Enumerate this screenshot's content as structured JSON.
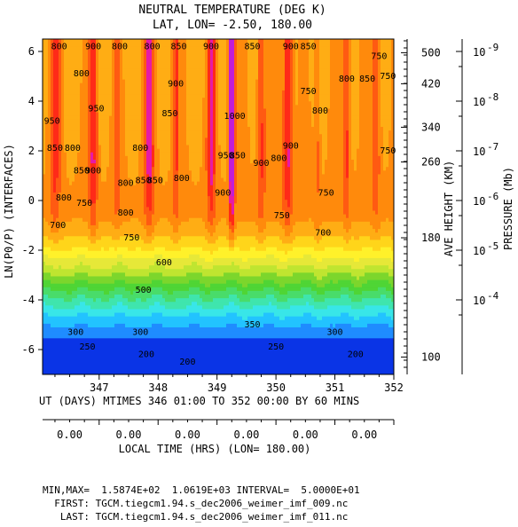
{
  "chart_data": {
    "type": "contour",
    "title": "NEUTRAL TEMPERATURE (DEG K)",
    "subtitle": "LAT, LON= -2.50,   180.00",
    "ylabel": "LN(P0/P) (INTERFACES)",
    "xlabel": "UT (DAYS) MTIMES 346 01:00 TO 352 00:00 BY    60 MINS",
    "xlim": [
      346.04,
      352.0
    ],
    "ylim": [
      -7.0,
      6.5
    ],
    "x_ticks": [
      347,
      348,
      349,
      350,
      351,
      352
    ],
    "y_ticks": [
      -6,
      -4,
      -2,
      0,
      2,
      4,
      6
    ],
    "contour_levels": [
      200,
      250,
      300,
      350,
      400,
      450,
      500,
      550,
      600,
      650,
      700,
      750,
      800,
      850,
      900,
      950,
      1000
    ],
    "contour_labels": [
      {
        "x": 346.32,
        "y": 6.2,
        "v": "800"
      },
      {
        "x": 346.9,
        "y": 6.2,
        "v": "900"
      },
      {
        "x": 347.35,
        "y": 6.2,
        "v": "800"
      },
      {
        "x": 346.7,
        "y": 5.1,
        "v": "800"
      },
      {
        "x": 346.95,
        "y": 3.7,
        "v": "950"
      },
      {
        "x": 347.9,
        "y": 6.2,
        "v": "800"
      },
      {
        "x": 348.35,
        "y": 6.2,
        "v": "850"
      },
      {
        "x": 348.9,
        "y": 6.2,
        "v": "900"
      },
      {
        "x": 348.3,
        "y": 4.7,
        "v": "900"
      },
      {
        "x": 348.2,
        "y": 3.5,
        "v": "850"
      },
      {
        "x": 349.3,
        "y": 3.4,
        "v": "1000"
      },
      {
        "x": 349.6,
        "y": 6.2,
        "v": "850"
      },
      {
        "x": 350.25,
        "y": 6.2,
        "v": "900"
      },
      {
        "x": 350.55,
        "y": 6.2,
        "v": "850"
      },
      {
        "x": 350.25,
        "y": 2.2,
        "v": "900"
      },
      {
        "x": 350.55,
        "y": 4.4,
        "v": "750"
      },
      {
        "x": 350.75,
        "y": 3.6,
        "v": "800"
      },
      {
        "x": 351.2,
        "y": 4.9,
        "v": "800"
      },
      {
        "x": 351.55,
        "y": 4.9,
        "v": "850"
      },
      {
        "x": 351.75,
        "y": 5.8,
        "v": "750"
      },
      {
        "x": 351.9,
        "y": 5.0,
        "v": "750"
      },
      {
        "x": 351.9,
        "y": 2.0,
        "v": "750"
      },
      {
        "x": 346.2,
        "y": 3.2,
        "v": "950"
      },
      {
        "x": 346.25,
        "y": 2.1,
        "v": "850"
      },
      {
        "x": 346.55,
        "y": 2.1,
        "v": "800"
      },
      {
        "x": 346.7,
        "y": 1.2,
        "v": "850"
      },
      {
        "x": 346.9,
        "y": 1.2,
        "v": "900"
      },
      {
        "x": 347.7,
        "y": 2.1,
        "v": "800"
      },
      {
        "x": 347.75,
        "y": 0.8,
        "v": "850"
      },
      {
        "x": 347.95,
        "y": 0.8,
        "v": "850"
      },
      {
        "x": 347.45,
        "y": 0.7,
        "v": "800"
      },
      {
        "x": 348.4,
        "y": 0.9,
        "v": "800"
      },
      {
        "x": 349.15,
        "y": 1.8,
        "v": "950"
      },
      {
        "x": 349.35,
        "y": 1.8,
        "v": "850"
      },
      {
        "x": 349.1,
        "y": 0.3,
        "v": "900"
      },
      {
        "x": 349.75,
        "y": 1.5,
        "v": "900"
      },
      {
        "x": 350.05,
        "y": 1.7,
        "v": "800"
      },
      {
        "x": 350.85,
        "y": 0.3,
        "v": "750"
      },
      {
        "x": 346.4,
        "y": 0.1,
        "v": "800"
      },
      {
        "x": 346.75,
        "y": -0.1,
        "v": "750"
      },
      {
        "x": 346.3,
        "y": -1.0,
        "v": "700"
      },
      {
        "x": 347.45,
        "y": -0.5,
        "v": "800"
      },
      {
        "x": 347.55,
        "y": -1.5,
        "v": "750"
      },
      {
        "x": 350.1,
        "y": -0.6,
        "v": "750"
      },
      {
        "x": 350.8,
        "y": -1.3,
        "v": "700"
      },
      {
        "x": 348.1,
        "y": -2.5,
        "v": "600"
      },
      {
        "x": 347.75,
        "y": -3.6,
        "v": "500"
      },
      {
        "x": 349.6,
        "y": -5.0,
        "v": "350"
      },
      {
        "x": 346.6,
        "y": -5.3,
        "v": "300"
      },
      {
        "x": 347.7,
        "y": -5.3,
        "v": "300"
      },
      {
        "x": 351.0,
        "y": -5.3,
        "v": "300"
      },
      {
        "x": 346.8,
        "y": -5.9,
        "v": "250"
      },
      {
        "x": 350.0,
        "y": -5.9,
        "v": "250"
      },
      {
        "x": 347.8,
        "y": -6.2,
        "v": "200"
      },
      {
        "x": 348.5,
        "y": -6.5,
        "v": "200"
      },
      {
        "x": 351.35,
        "y": -6.2,
        "v": "200"
      }
    ],
    "height_axis": {
      "label": "AVE HEIGHT (KM)",
      "ticks": [
        {
          "v": "500",
          "y": 5.95
        },
        {
          "v": "420",
          "y": 4.7
        },
        {
          "v": "340",
          "y": 2.95
        },
        {
          "v": "260",
          "y": 1.55
        },
        {
          "v": "180",
          "y": -1.5
        },
        {
          "v": "100",
          "y": -6.3
        }
      ]
    },
    "pressure_axis": {
      "label": "PRESSURE (Mb)",
      "ticks": [
        {
          "v": "10",
          "exp": "-9",
          "y": 6.0
        },
        {
          "v": "10",
          "exp": "-8",
          "y": 4.0
        },
        {
          "v": "10",
          "exp": "-7",
          "y": 2.0
        },
        {
          "v": "10",
          "exp": "-6",
          "y": 0.0
        },
        {
          "v": "10",
          "exp": "-5",
          "y": -2.0
        },
        {
          "v": "10",
          "exp": "-4",
          "y": -4.0
        }
      ]
    },
    "local_time": {
      "label": "LOCAL TIME (HRS) (LON= 180.00)",
      "ticks": [
        "0.00",
        "0.00",
        "0.00",
        "0.00",
        "0.00",
        "0.00"
      ]
    },
    "colors": [
      "#0a34e6",
      "#1f8cff",
      "#22c3ff",
      "#38e6e8",
      "#3fe5ad",
      "#49dc6a",
      "#4fd535",
      "#7cd62c",
      "#bfe530",
      "#e6e838",
      "#fff12a",
      "#ffd51a",
      "#ffad14",
      "#ff8a0c",
      "#ff5a12",
      "#ff2a18",
      "#e61aa8",
      "#c21cd8"
    ]
  },
  "footer": {
    "minmax": "MIN,MAX=  1.5874E+02  1.0619E+03 INTERVAL=  5.0000E+01",
    "first": "  FIRST: TGCM.tiegcm1.94.s_dec2006_weimer_imf_009.nc",
    "last": "   LAST: TGCM.tiegcm1.94.s_dec2006_weimer_imf_011.nc"
  }
}
